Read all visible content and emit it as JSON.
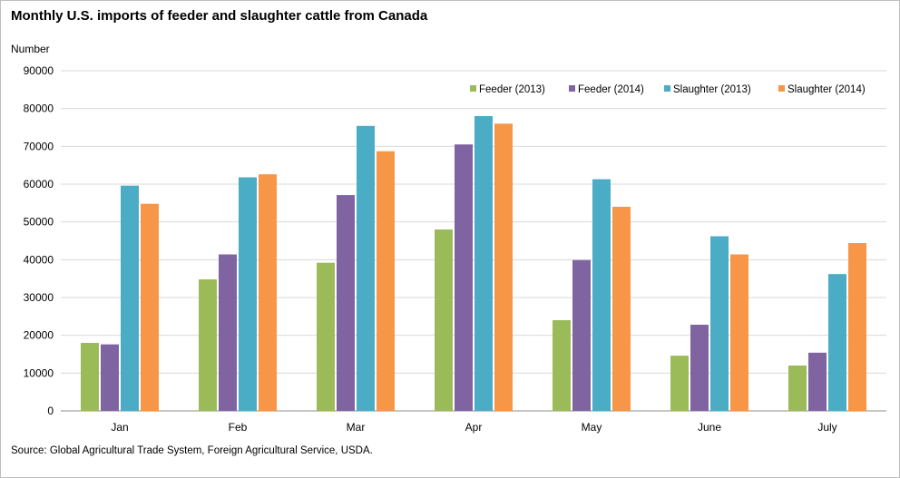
{
  "chart_data": {
    "type": "bar",
    "title": "Monthly U.S. imports of feeder and slaughter cattle from Canada",
    "ylabel": "Number",
    "xlabel": "",
    "ylim": [
      0,
      90000
    ],
    "yticks": [
      0,
      10000,
      20000,
      30000,
      40000,
      50000,
      60000,
      70000,
      80000,
      90000
    ],
    "grid": true,
    "legend_position": "top-right",
    "categories": [
      "Jan",
      "Feb",
      "Mar",
      "Apr",
      "May",
      "June",
      "July"
    ],
    "series": [
      {
        "name": "Feeder (2013)",
        "color": "#9bbb59",
        "values": [
          18000,
          34800,
          39200,
          48000,
          24000,
          14600,
          12000
        ]
      },
      {
        "name": "Feeder (2014)",
        "color": "#8064a2",
        "values": [
          17600,
          41400,
          57100,
          70500,
          39900,
          22800,
          15400
        ]
      },
      {
        "name": "Slaughter (2013)",
        "color": "#4bacc6",
        "values": [
          59600,
          61800,
          75400,
          78000,
          61300,
          46200,
          36200
        ]
      },
      {
        "name": "Slaughter (2014)",
        "color": "#f79646",
        "values": [
          54800,
          62600,
          68700,
          76000,
          54000,
          41400,
          44400
        ]
      }
    ]
  },
  "source": "Source: Global Agricultural Trade System, Foreign Agricultural Service, USDA."
}
